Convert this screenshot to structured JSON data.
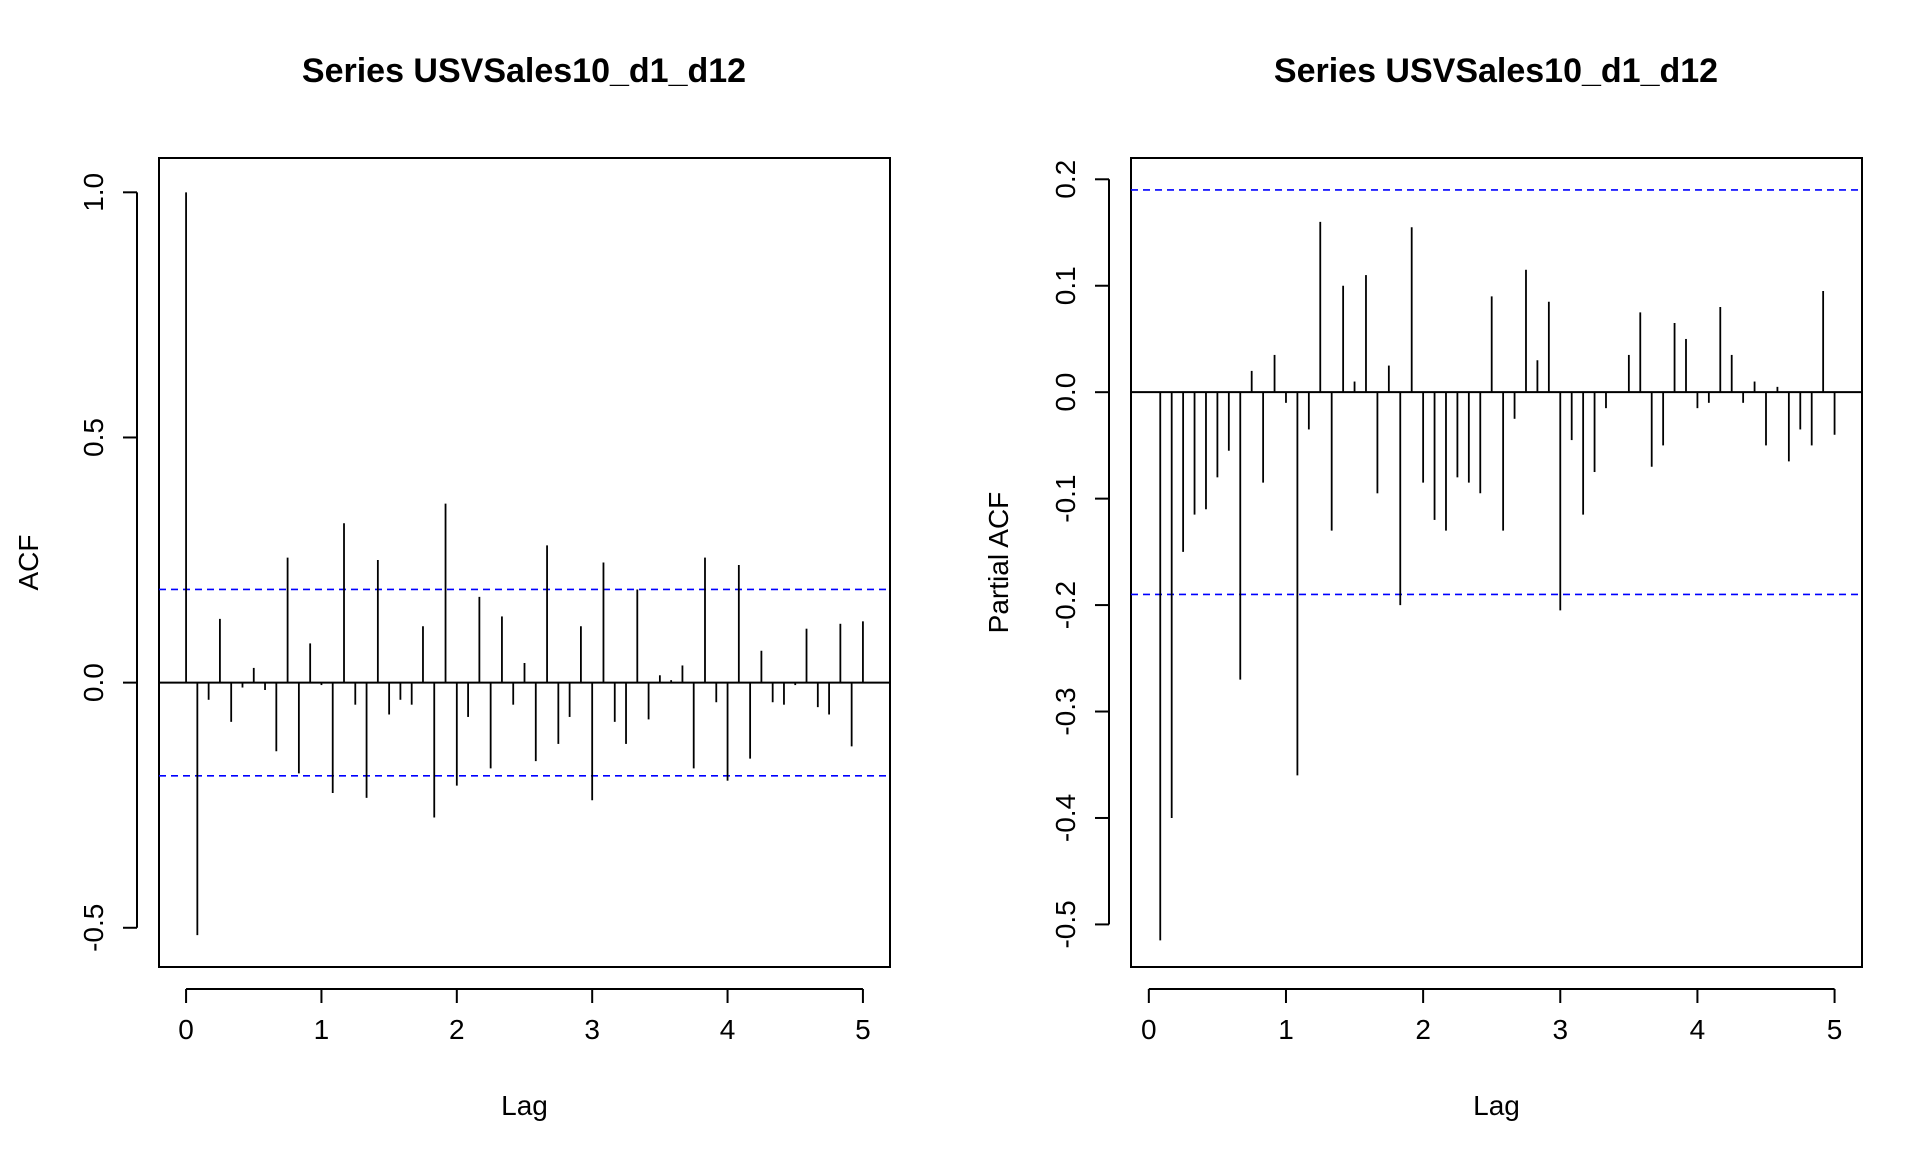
{
  "chart_data": [
    {
      "type": "bar",
      "subtype": "acf-correlogram",
      "title": "Series  USVSales10_d1_d12",
      "xlabel": "Lag",
      "ylabel": "ACF",
      "xlim": [
        -0.2,
        5.2
      ],
      "ylim": [
        -0.58,
        1.07
      ],
      "xticks": [
        0,
        1,
        2,
        3,
        4,
        5
      ],
      "yticks": [
        -0.5,
        0.0,
        0.5,
        1.0
      ],
      "ytick_labels": [
        "-0.5",
        "0.0",
        "0.5",
        "1.0"
      ],
      "zero_line": 0,
      "confidence_bounds": [
        0.19,
        -0.19
      ],
      "confidence_color": "#0000FF",
      "bar_color": "#000000",
      "grid": false,
      "x": [
        0.0,
        0.0833,
        0.1667,
        0.25,
        0.3333,
        0.4167,
        0.5,
        0.5833,
        0.6667,
        0.75,
        0.8333,
        0.9167,
        1.0,
        1.0833,
        1.1667,
        1.25,
        1.3333,
        1.4167,
        1.5,
        1.5833,
        1.6667,
        1.75,
        1.8333,
        1.9167,
        2.0,
        2.0833,
        2.1667,
        2.25,
        2.3333,
        2.4167,
        2.5,
        2.5833,
        2.6667,
        2.75,
        2.8333,
        2.9167,
        3.0,
        3.0833,
        3.1667,
        3.25,
        3.3333,
        3.4167,
        3.5,
        3.5833,
        3.6667,
        3.75,
        3.8333,
        3.9167,
        4.0,
        4.0833,
        4.1667,
        4.25,
        4.3333,
        4.4167,
        4.5,
        4.5833,
        4.6667,
        4.75,
        4.8333,
        4.9167,
        5.0
      ],
      "values": [
        1.0,
        -0.515,
        -0.035,
        0.13,
        -0.08,
        -0.01,
        0.03,
        -0.015,
        -0.14,
        0.255,
        -0.185,
        0.08,
        -0.005,
        -0.225,
        0.325,
        -0.045,
        -0.235,
        0.25,
        -0.065,
        -0.035,
        -0.045,
        0.115,
        -0.275,
        0.365,
        -0.21,
        -0.07,
        0.175,
        -0.175,
        0.135,
        -0.045,
        0.04,
        -0.16,
        0.28,
        -0.125,
        -0.07,
        0.115,
        -0.24,
        0.245,
        -0.08,
        -0.125,
        0.19,
        -0.075,
        0.015,
        0.005,
        0.035,
        -0.175,
        0.255,
        -0.04,
        -0.2,
        0.24,
        -0.155,
        0.065,
        -0.04,
        -0.045,
        -0.005,
        0.11,
        -0.05,
        -0.065,
        0.12,
        -0.13,
        0.125
      ]
    },
    {
      "type": "bar",
      "subtype": "pacf-correlogram",
      "title": "Series  USVSales10_d1_d12",
      "xlabel": "Lag",
      "ylabel": "Partial ACF",
      "xlim": [
        -0.13,
        5.2
      ],
      "ylim": [
        -0.54,
        0.22
      ],
      "xticks": [
        0,
        1,
        2,
        3,
        4,
        5
      ],
      "yticks": [
        -0.5,
        -0.4,
        -0.3,
        -0.2,
        -0.1,
        0.0,
        0.1,
        0.2
      ],
      "ytick_labels": [
        "-0.5",
        "-0.4",
        "-0.3",
        "-0.2",
        "-0.1",
        "0.0",
        "0.1",
        "0.2"
      ],
      "zero_line": 0,
      "confidence_bounds": [
        0.19,
        -0.19
      ],
      "confidence_color": "#0000FF",
      "bar_color": "#000000",
      "grid": false,
      "x": [
        0.0833,
        0.1667,
        0.25,
        0.3333,
        0.4167,
        0.5,
        0.5833,
        0.6667,
        0.75,
        0.8333,
        0.9167,
        1.0,
        1.0833,
        1.1667,
        1.25,
        1.3333,
        1.4167,
        1.5,
        1.5833,
        1.6667,
        1.75,
        1.8333,
        1.9167,
        2.0,
        2.0833,
        2.1667,
        2.25,
        2.3333,
        2.4167,
        2.5,
        2.5833,
        2.6667,
        2.75,
        2.8333,
        2.9167,
        3.0,
        3.0833,
        3.1667,
        3.25,
        3.3333,
        3.4167,
        3.5,
        3.5833,
        3.6667,
        3.75,
        3.8333,
        3.9167,
        4.0,
        4.0833,
        4.1667,
        4.25,
        4.3333,
        4.4167,
        4.5,
        4.5833,
        4.6667,
        4.75,
        4.8333,
        4.9167,
        5.0
      ],
      "values": [
        -0.515,
        -0.4,
        -0.15,
        -0.115,
        -0.11,
        -0.08,
        -0.055,
        -0.27,
        0.02,
        -0.085,
        0.035,
        -0.01,
        -0.36,
        -0.035,
        0.16,
        -0.13,
        0.1,
        0.01,
        0.11,
        -0.095,
        0.025,
        -0.2,
        0.155,
        -0.085,
        -0.12,
        -0.13,
        -0.08,
        -0.085,
        -0.095,
        0.09,
        -0.13,
        -0.025,
        0.115,
        0.03,
        0.085,
        -0.205,
        -0.045,
        -0.115,
        -0.075,
        -0.015,
        0.0,
        0.035,
        0.075,
        -0.07,
        -0.05,
        0.065,
        0.05,
        -0.015,
        -0.01,
        0.08,
        0.035,
        -0.01,
        0.01,
        -0.05,
        0.005,
        -0.065,
        -0.035,
        -0.05,
        0.095,
        -0.04
      ]
    }
  ]
}
